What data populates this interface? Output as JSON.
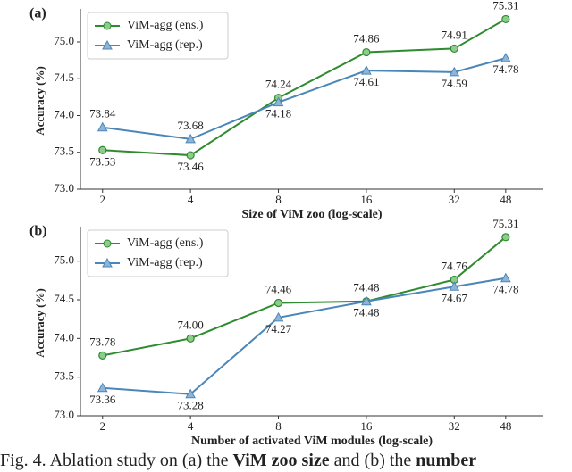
{
  "chart_data": [
    {
      "type": "line",
      "panel_label": "(a)",
      "xlabel": "Size of ViM zoo (log-scale)",
      "ylabel": "Accuracy (%)",
      "x": [
        2,
        4,
        8,
        16,
        32,
        48
      ],
      "log_x": true,
      "xlim": [
        1.68,
        64.6
      ],
      "xticks": [
        2,
        4,
        8,
        16,
        32,
        48
      ],
      "ylim": [
        73.0,
        75.4
      ],
      "yticks": [
        {
          "value": 73.0,
          "label": "73.0"
        },
        73.5,
        {
          "value": 74.0,
          "label": "74.0"
        },
        74.5,
        {
          "value": 75.0,
          "label": "75.0"
        }
      ],
      "legend": "upper left",
      "series": [
        {
          "name": "ViM-agg (ens.)",
          "color": "#2e8b2e",
          "marker": "circle",
          "values": [
            73.53,
            73.46,
            74.24,
            74.86,
            74.91,
            75.31
          ],
          "value_labels": [
            "73.53",
            "73.46",
            "74.24",
            "74.86",
            "74.91",
            "75.31"
          ]
        },
        {
          "name": "ViM-agg (rep.)",
          "color": "#4a86b8",
          "marker": "triangle",
          "values": [
            73.84,
            73.68,
            74.18,
            74.61,
            74.59,
            74.78
          ],
          "value_labels": [
            "73.84",
            "73.68",
            "74.18",
            "74.61",
            "74.59",
            "74.78"
          ]
        }
      ]
    },
    {
      "type": "line",
      "panel_label": "(b)",
      "xlabel": "Number of activated ViM modules (log-scale)",
      "ylabel": "Accuracy (%)",
      "x": [
        2,
        4,
        8,
        16,
        32,
        48
      ],
      "log_x": true,
      "xlim": [
        1.68,
        64.6
      ],
      "xticks": [
        2,
        4,
        8,
        16,
        32,
        48
      ],
      "ylim": [
        73.0,
        75.4
      ],
      "yticks": [
        {
          "value": 73.0,
          "label": "73.0"
        },
        73.5,
        {
          "value": 74.0,
          "label": "74.0"
        },
        74.5,
        {
          "value": 75.0,
          "label": "75.0"
        }
      ],
      "legend": "upper left",
      "series": [
        {
          "name": "ViM-agg (ens.)",
          "color": "#2e8b2e",
          "marker": "circle",
          "values": [
            73.78,
            74.0,
            74.46,
            74.48,
            74.76,
            75.31
          ],
          "value_labels": [
            "73.78",
            "74.00",
            "74.46",
            "74.48",
            "74.76",
            "75.31"
          ]
        },
        {
          "name": "ViM-agg (rep.)",
          "color": "#4a86b8",
          "marker": "triangle",
          "values": [
            73.36,
            73.28,
            74.27,
            74.48,
            74.67,
            74.78
          ],
          "value_labels": [
            "73.36",
            "73.28",
            "74.27",
            "74.48",
            "74.67",
            "74.78"
          ]
        }
      ]
    }
  ],
  "caption": {
    "parts": [
      "Fig. 4.  Ablation study on (a) the ",
      "ViM zoo size",
      " and (b) the ",
      "number"
    ]
  }
}
